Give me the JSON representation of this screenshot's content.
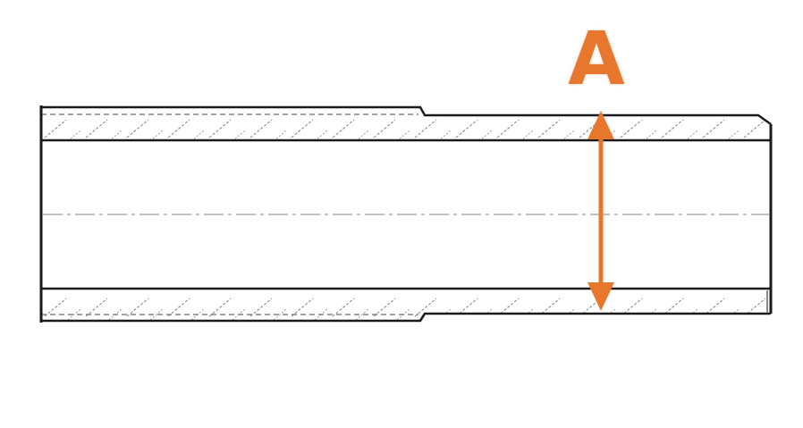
{
  "diagram": {
    "dimension_label": "A"
  },
  "colors": {
    "accent": "#e8772e",
    "line": "#1a1a1a",
    "hatch": "#8a8a8a",
    "centerline": "#9a9a9a",
    "background": "#ffffff"
  }
}
